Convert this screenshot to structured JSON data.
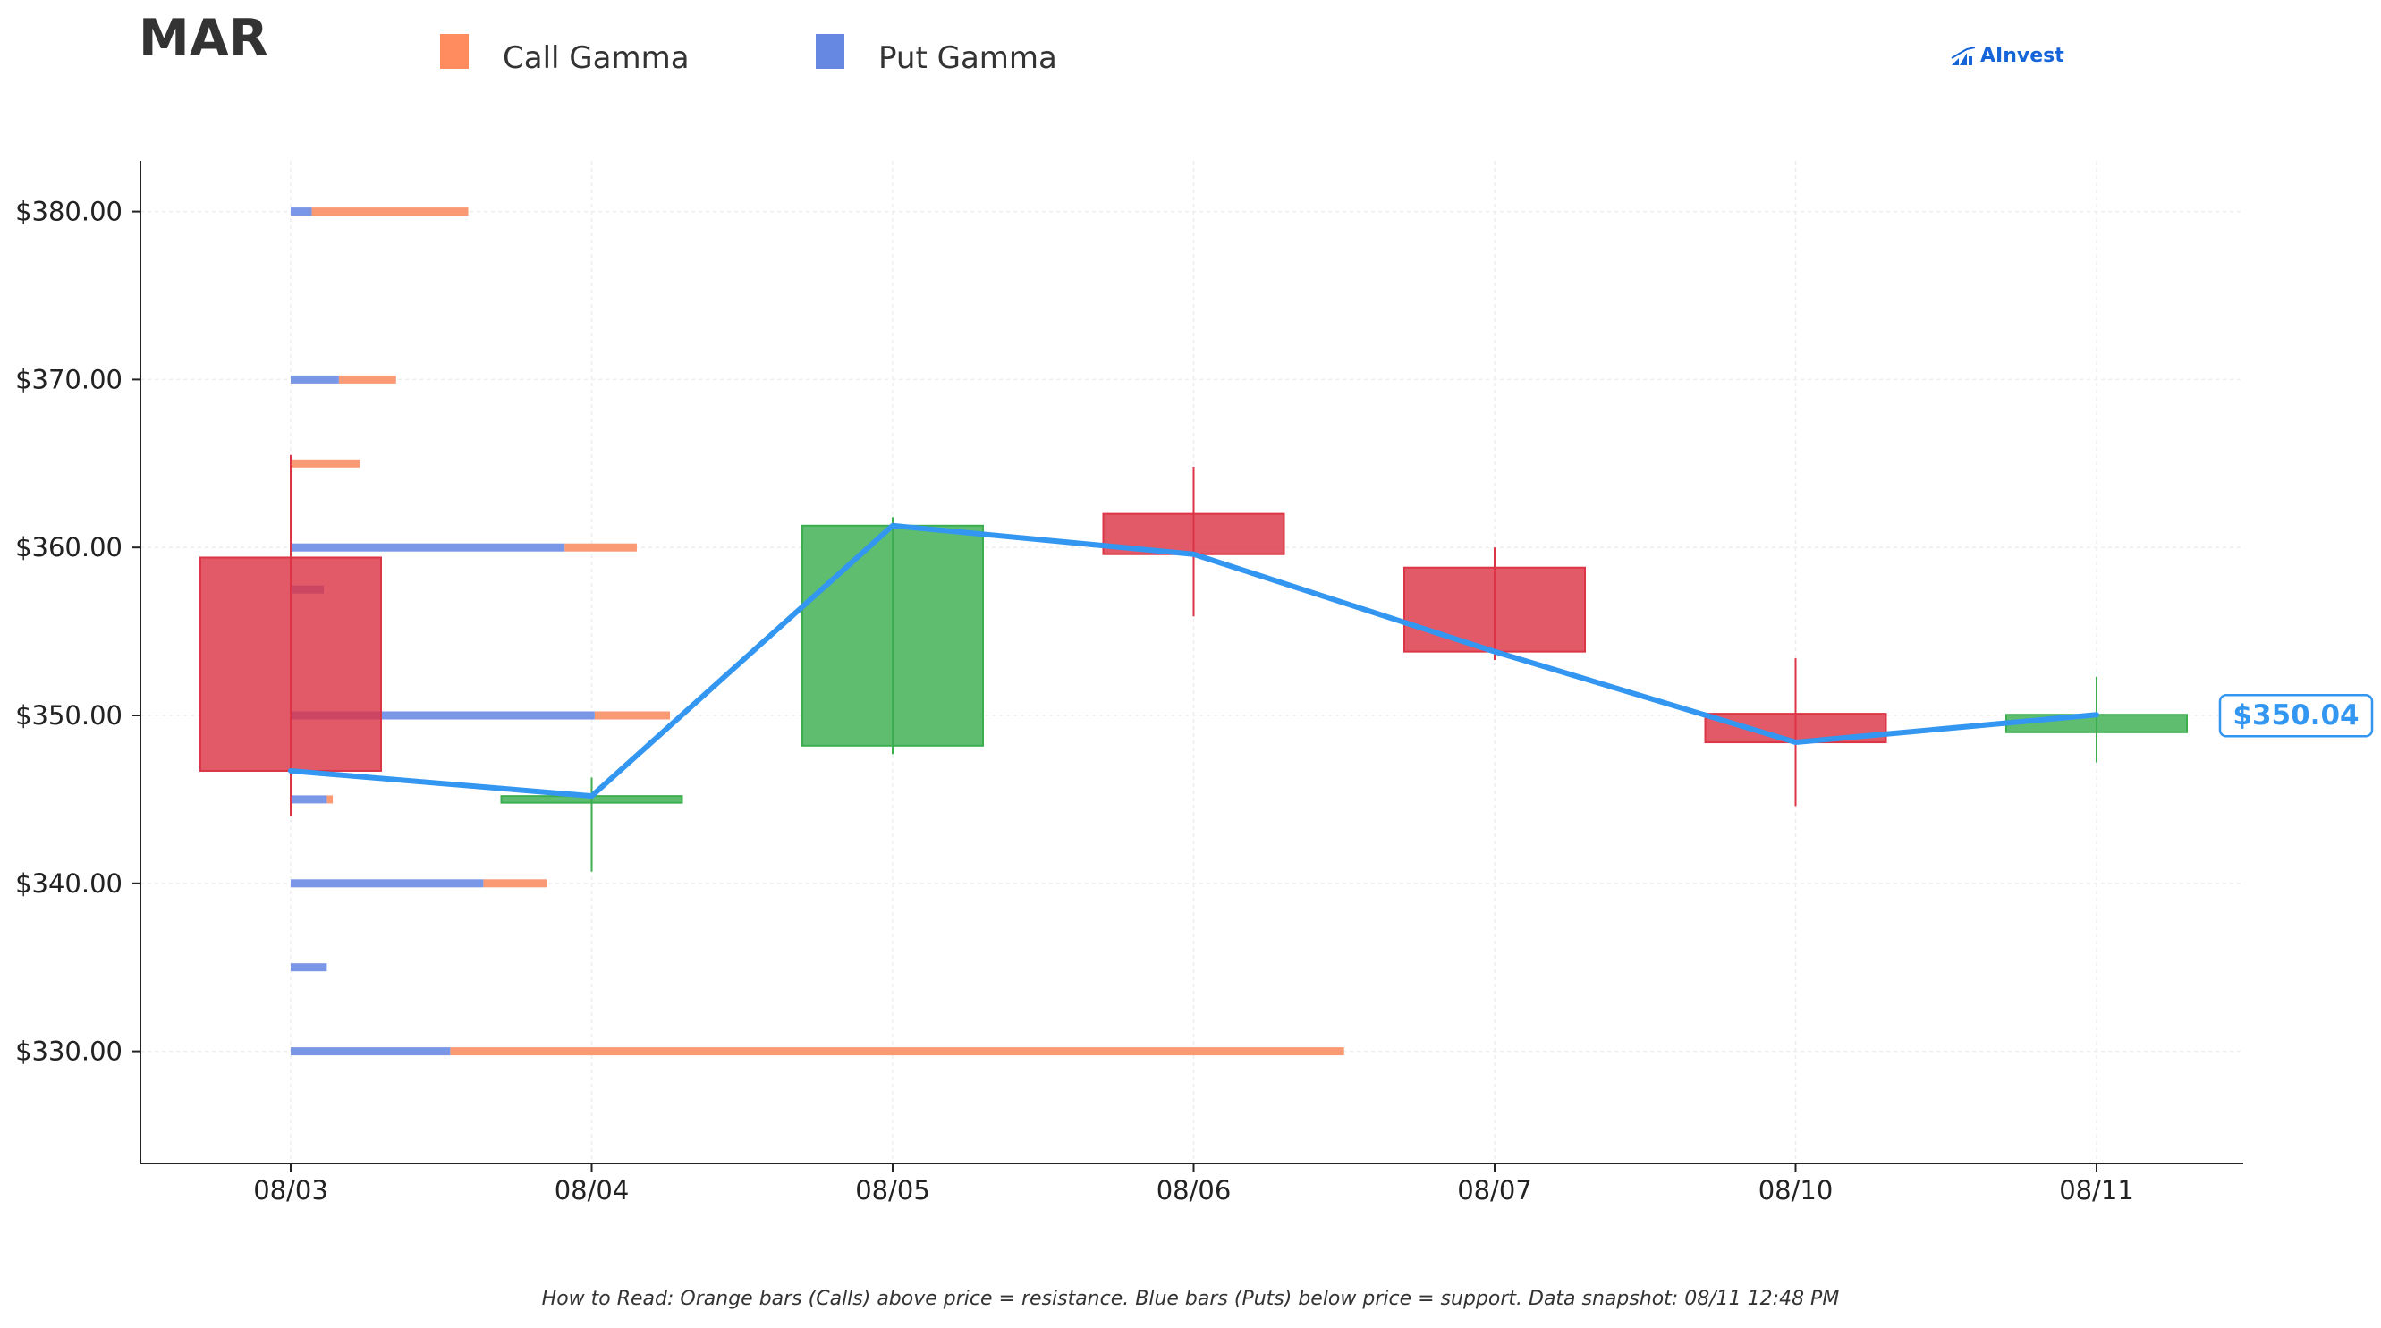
{
  "header": {
    "ticker": "MAR",
    "legend": [
      {
        "label": "Call Gamma",
        "color": "#ff8c5f"
      },
      {
        "label": "Put Gamma",
        "color": "#6688e3"
      }
    ],
    "brand": "AInvest"
  },
  "footer": {
    "note": "How to Read: Orange bars (Calls) above price = resistance. Blue bars (Puts) below price = support. Data snapshot: 08/11 12:48 PM"
  },
  "chart_data": {
    "type": "candlestick",
    "x_categories": [
      "08/03",
      "08/04",
      "08/05",
      "08/06",
      "08/07",
      "08/10",
      "08/11"
    ],
    "y_ticks": [
      330,
      340,
      350,
      360,
      370,
      380
    ],
    "y_tick_labels": [
      "$330.00",
      "$340.00",
      "$350.00",
      "$360.00",
      "$370.00",
      "$380.00"
    ],
    "ylim": [
      323,
      383
    ],
    "grid": true,
    "colors": {
      "up": "#3cae50",
      "down": "#dc3545",
      "line": "#3396f0",
      "call": "#fa9a74",
      "put": "#7a96e6"
    },
    "candles": [
      {
        "date": "08/03",
        "open": 359.4,
        "high": 365.5,
        "low": 344.0,
        "close": 346.7
      },
      {
        "date": "08/04",
        "open": 344.8,
        "high": 346.3,
        "low": 340.7,
        "close": 345.2
      },
      {
        "date": "08/05",
        "open": 348.2,
        "high": 361.8,
        "low": 347.7,
        "close": 361.3
      },
      {
        "date": "08/06",
        "open": 362.0,
        "high": 364.8,
        "low": 355.9,
        "close": 359.6
      },
      {
        "date": "08/07",
        "open": 358.8,
        "high": 360.0,
        "low": 353.3,
        "close": 353.8
      },
      {
        "date": "08/10",
        "open": 350.1,
        "high": 353.4,
        "low": 344.6,
        "close": 348.4
      },
      {
        "date": "08/11",
        "open": 349.0,
        "high": 352.3,
        "low": 347.2,
        "close": 350.04
      }
    ],
    "price_line": {
      "name": "Close",
      "values": [
        346.7,
        345.2,
        361.3,
        359.6,
        353.8,
        348.4,
        350.04
      ]
    },
    "gamma_exposure": {
      "scale_note": "bar lengths in category-width units from 08/03",
      "levels": [
        {
          "strike": 380,
          "put": 0.07,
          "call": 0.52
        },
        {
          "strike": 370,
          "put": 0.16,
          "call": 0.19
        },
        {
          "strike": 365,
          "put": 0.0,
          "call": 0.23
        },
        {
          "strike": 360,
          "put": 0.91,
          "call": 0.24
        },
        {
          "strike": 357.5,
          "put": 0.11,
          "call": 0.0
        },
        {
          "strike": 350,
          "put": 1.01,
          "call": 0.25
        },
        {
          "strike": 345,
          "put": 0.12,
          "call": 0.02
        },
        {
          "strike": 340,
          "put": 0.64,
          "call": 0.21
        },
        {
          "strike": 335,
          "put": 0.12,
          "call": 0.0
        },
        {
          "strike": 330,
          "put": 0.53,
          "call": 2.97
        }
      ]
    },
    "current_price_label": "$350.04",
    "current_price": 350.04
  }
}
